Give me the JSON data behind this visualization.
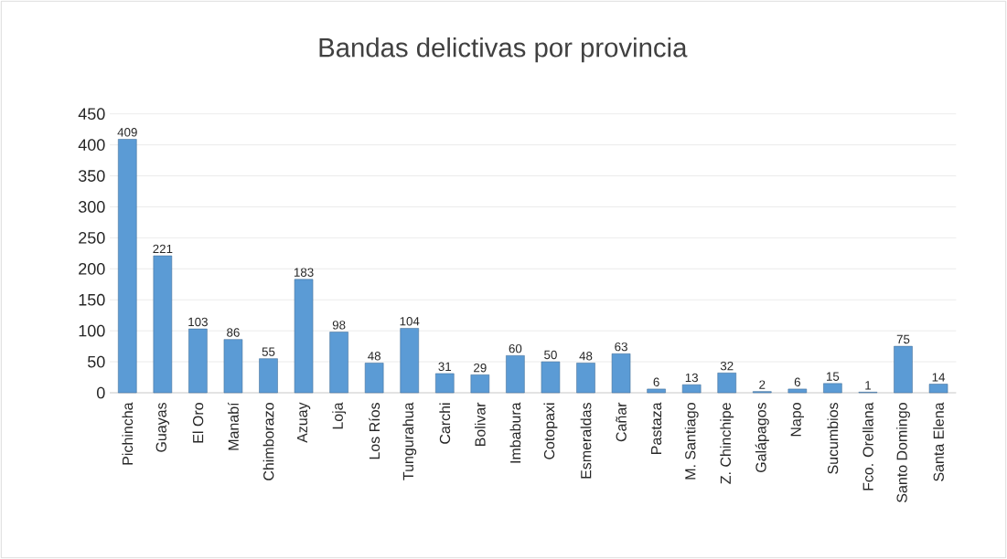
{
  "chart_data": {
    "type": "bar",
    "title": "Bandas delictivas por provincia",
    "categories": [
      "Pichincha",
      "Guayas",
      "El Oro",
      "Manabí",
      "Chimborazo",
      "Azuay",
      "Loja",
      "Los Ríos",
      "Tungurahua",
      "Carchi",
      "Bolivar",
      "Imbabura",
      "Cotopaxi",
      "Esmeraldas",
      "Cañar",
      "Pastaza",
      "M. Santiago",
      "Z. Chinchipe",
      "Galápagos",
      "Napo",
      "Sucumbios",
      "Fco. Orellana",
      "Santo Domingo",
      "Santa Elena"
    ],
    "values": [
      409,
      221,
      103,
      86,
      55,
      183,
      98,
      48,
      104,
      31,
      29,
      60,
      50,
      48,
      63,
      6,
      13,
      32,
      2,
      6,
      15,
      1,
      75,
      14
    ],
    "color": "#5b9bd5",
    "ylim": [
      0,
      450
    ],
    "yticks": [
      0,
      50,
      100,
      150,
      200,
      250,
      300,
      350,
      400,
      450
    ],
    "grid": "y",
    "data_labels": true
  }
}
